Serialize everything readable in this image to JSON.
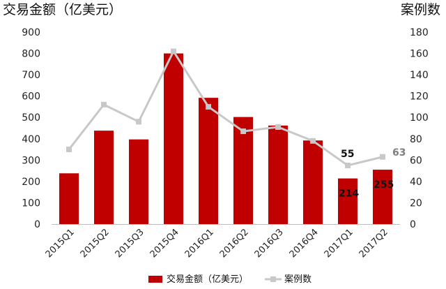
{
  "chart_data": {
    "type": "bar",
    "left_axis_label": "交易金额（亿美元）",
    "right_axis_label": "案例数",
    "categories": [
      "2015Q1",
      "2015Q2",
      "2015Q3",
      "2015Q4",
      "2016Q1",
      "2016Q2",
      "2016Q3",
      "2016Q4",
      "2017Q1",
      "2017Q2"
    ],
    "series": [
      {
        "name": "交易金额（亿美元）",
        "type": "bar",
        "axis": "left",
        "color": "#c00000",
        "values": [
          238,
          438,
          397,
          800,
          592,
          502,
          462,
          392,
          214,
          255
        ]
      },
      {
        "name": "案例数",
        "type": "line",
        "axis": "right",
        "color": "#c8c8c8",
        "values": [
          70,
          112,
          96,
          162,
          110,
          87,
          91,
          78,
          55,
          63
        ]
      }
    ],
    "left_ylim": [
      0,
      900
    ],
    "right_ylim": [
      0,
      180
    ],
    "left_ticks": [
      "0",
      "100",
      "200",
      "300",
      "400",
      "500",
      "600",
      "700",
      "800",
      "900"
    ],
    "right_ticks": [
      "0",
      "20",
      "40",
      "60",
      "80",
      "100",
      "120",
      "140",
      "160",
      "180"
    ],
    "data_labels": [
      {
        "text": "55",
        "series": "line",
        "index": 8
      },
      {
        "text": "63",
        "series": "line",
        "index": 9
      },
      {
        "text": "214",
        "series": "bar",
        "index": 8
      },
      {
        "text": "255",
        "series": "bar",
        "index": 9
      }
    ],
    "grid": false,
    "legend_position": "bottom"
  },
  "legend": {
    "bar_label": "交易金额（亿美元）",
    "line_label": "案例数"
  }
}
